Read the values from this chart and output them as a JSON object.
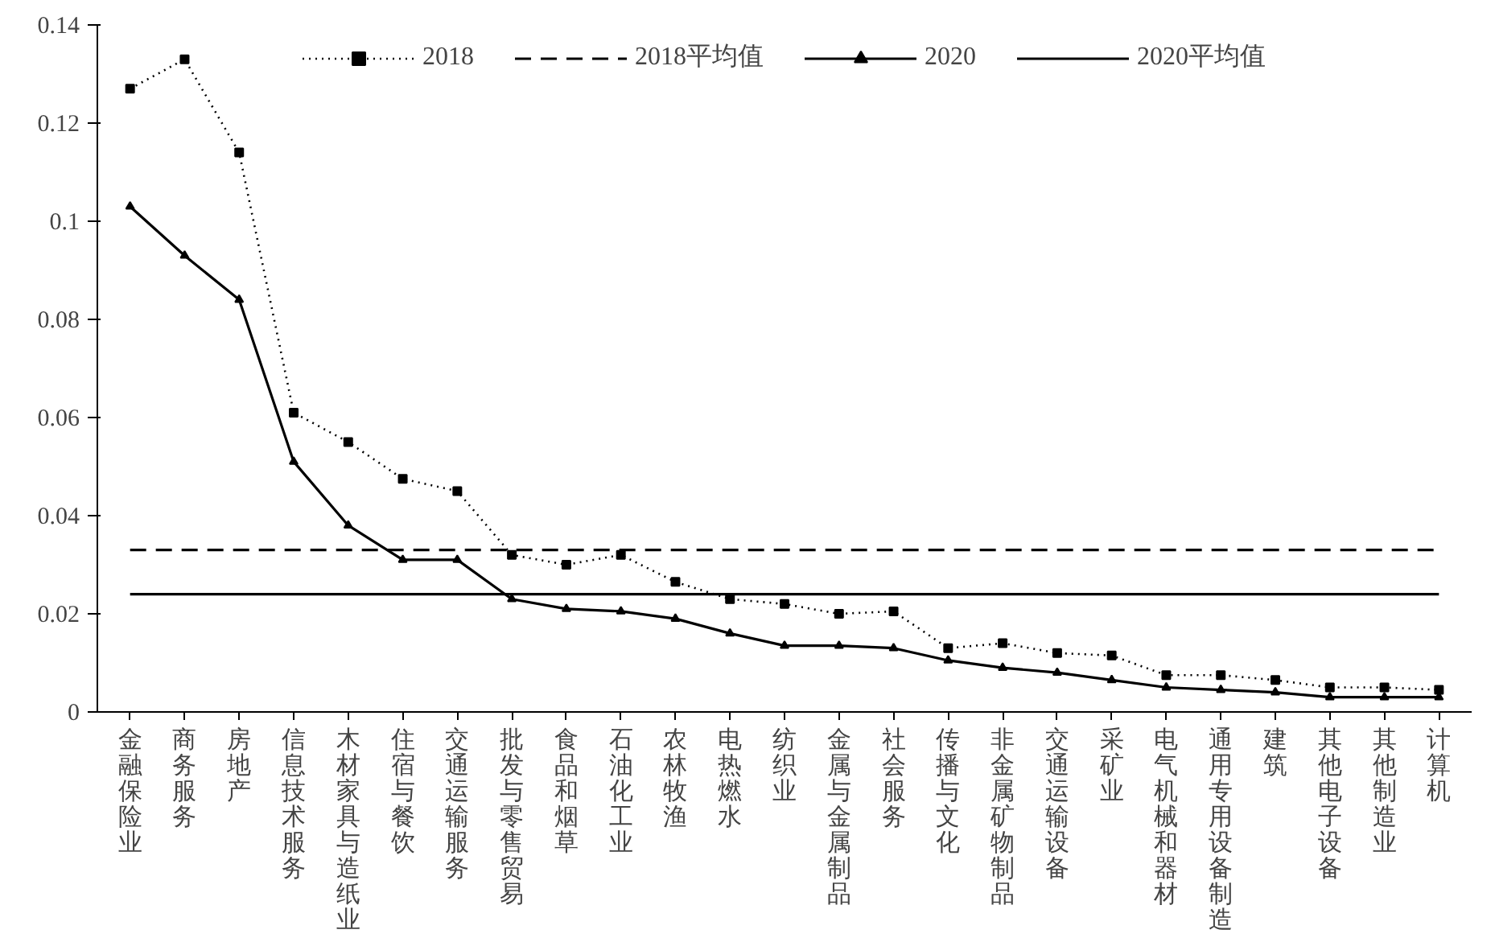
{
  "chart_data": {
    "type": "line",
    "categories": [
      "金融保险业",
      "商务服务",
      "房地产",
      "信息技术服务",
      "木材家具与造纸业",
      "住宿与餐饮",
      "交通运输服务",
      "批发与零售贸易",
      "食品和烟草",
      "石油化工业",
      "农林牧渔",
      "电热燃水",
      "纺织业",
      "金属与金属制品",
      "社会服务",
      "传播与文化",
      "非金属矿物制品",
      "交通运输设备",
      "采矿业",
      "电气机械和器材",
      "通用专用设备制造",
      "建筑",
      "其他电子设备",
      "其他制造业",
      "计算机"
    ],
    "series": [
      {
        "name": "2018",
        "color": "#000000",
        "marker": "square",
        "line_style": "dotted",
        "values": [
          0.127,
          0.133,
          0.114,
          0.061,
          0.055,
          0.0475,
          0.045,
          0.032,
          0.03,
          0.032,
          0.0265,
          0.023,
          0.022,
          0.02,
          0.0205,
          0.013,
          0.014,
          0.012,
          0.0115,
          0.0075,
          0.0075,
          0.0065,
          0.005,
          0.005,
          0.0045
        ]
      },
      {
        "name": "2020",
        "color": "#000000",
        "marker": "triangle",
        "line_style": "solid",
        "values": [
          0.103,
          0.093,
          0.084,
          0.051,
          0.038,
          0.031,
          0.031,
          0.023,
          0.021,
          0.0205,
          0.019,
          0.016,
          0.0135,
          0.0135,
          0.013,
          0.0105,
          0.009,
          0.008,
          0.0065,
          0.005,
          0.0045,
          0.004,
          0.003,
          0.003,
          0.003
        ]
      }
    ],
    "ref_lines": [
      {
        "axis": "y",
        "value": 0.033,
        "label": "2018平均值",
        "color": "#000000",
        "line_style": "dashed"
      },
      {
        "axis": "y",
        "value": 0.024,
        "label": "2020平均值",
        "color": "#000000",
        "line_style": "solid"
      }
    ],
    "ylim": [
      0,
      0.14
    ],
    "yticks": [
      0,
      0.02,
      0.04,
      0.06,
      0.08,
      0.1,
      0.12,
      0.14
    ],
    "grid": false,
    "legend": "top"
  }
}
